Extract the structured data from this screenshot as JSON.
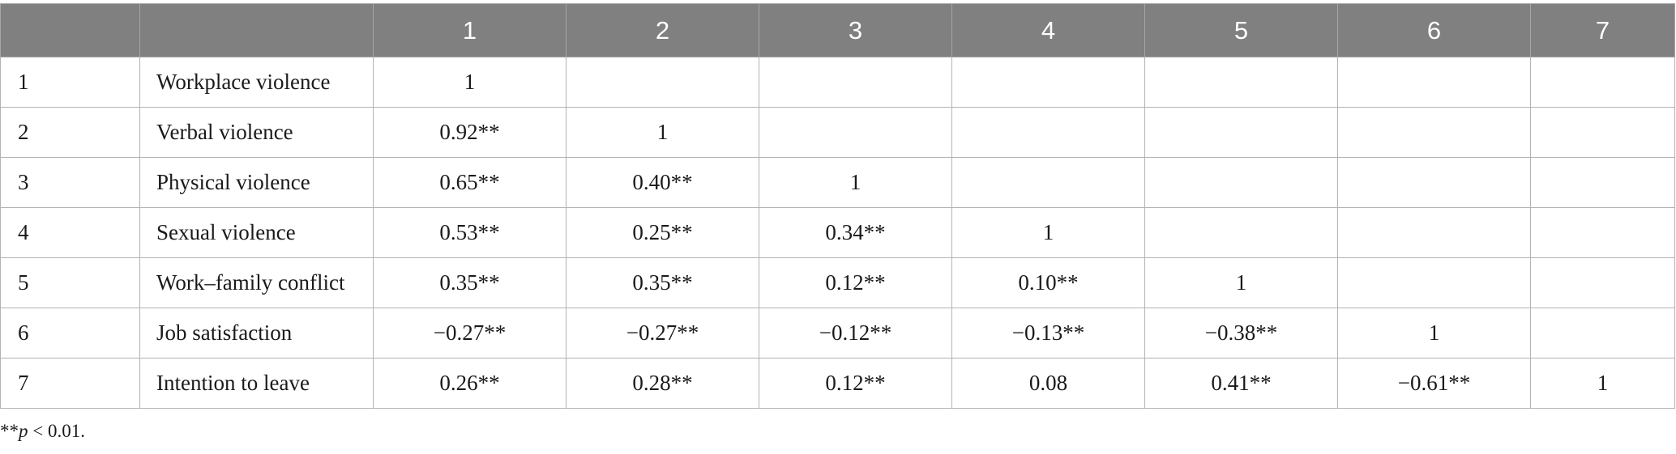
{
  "table": {
    "header": [
      "",
      "",
      "1",
      "2",
      "3",
      "4",
      "5",
      "6",
      "7"
    ],
    "rows": [
      {
        "num": "1",
        "label": "Workplace violence",
        "values": [
          "1",
          "",
          "",
          "",
          "",
          "",
          ""
        ]
      },
      {
        "num": "2",
        "label": "Verbal violence",
        "values": [
          "0.92**",
          "1",
          "",
          "",
          "",
          "",
          ""
        ]
      },
      {
        "num": "3",
        "label": "Physical violence",
        "values": [
          "0.65**",
          "0.40**",
          "1",
          "",
          "",
          "",
          ""
        ]
      },
      {
        "num": "4",
        "label": "Sexual violence",
        "values": [
          "0.53**",
          "0.25**",
          "0.34**",
          "1",
          "",
          "",
          ""
        ]
      },
      {
        "num": "5",
        "label": "Work–family conflict",
        "values": [
          "0.35**",
          "0.35**",
          "0.12**",
          "0.10**",
          "1",
          "",
          ""
        ]
      },
      {
        "num": "6",
        "label": "Job satisfaction",
        "values": [
          "−0.27**",
          "−0.27**",
          "−0.12**",
          "−0.13**",
          "−0.38**",
          "1",
          ""
        ]
      },
      {
        "num": "7",
        "label": "Intention to leave",
        "values": [
          "0.26**",
          "0.28**",
          "0.12**",
          "0.08",
          "0.41**",
          "−0.61**",
          "1"
        ]
      }
    ]
  },
  "footnote": {
    "stars": "**",
    "p_symbol": "p",
    "condition": " < 0.01."
  }
}
